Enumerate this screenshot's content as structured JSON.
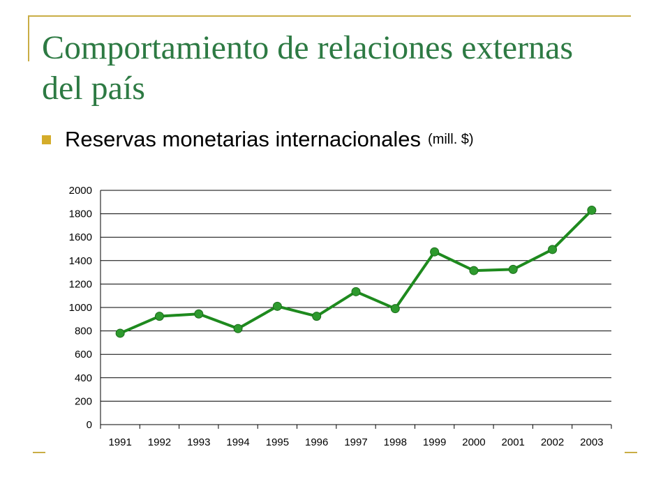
{
  "title": "Comportamiento de relaciones externas del país",
  "bullet": {
    "text": "Reservas monetarias internacionales",
    "unit": "(mill. $)",
    "icon": "square-bullet-icon"
  },
  "colors": {
    "title": "#2d7a43",
    "accent": "#d4ac2a",
    "line": "#1e8a1e",
    "marker": "#2e9a2e"
  },
  "chart_data": {
    "type": "line",
    "categories": [
      "1991",
      "1992",
      "1993",
      "1994",
      "1995",
      "1996",
      "1997",
      "1998",
      "1999",
      "2000",
      "2001",
      "2002",
      "2003"
    ],
    "series": [
      {
        "values": [
          780,
          925,
          945,
          820,
          1010,
          925,
          1135,
          990,
          1475,
          1315,
          1325,
          1495,
          1830
        ]
      }
    ],
    "ylim": [
      0,
      2000
    ],
    "yticks": [
      0,
      200,
      400,
      600,
      800,
      1000,
      1200,
      1400,
      1600,
      1800,
      2000
    ],
    "grid": "horizontal",
    "legend": "none",
    "title": "",
    "xlabel": "",
    "ylabel": ""
  }
}
